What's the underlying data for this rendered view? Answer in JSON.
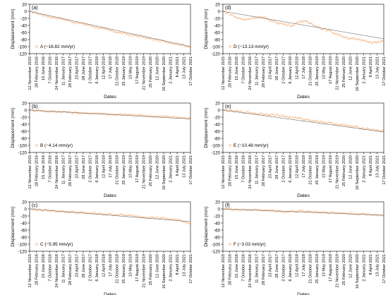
{
  "chart_data": [
    {
      "type": "scatter",
      "panel_label": "(a)",
      "legend": "A (−16.82 mm/yr)",
      "xlabel": "Dates",
      "ylabel": "Displacement (mm)",
      "ylim": [
        -120,
        20
      ],
      "yticks": [
        20,
        0,
        -20,
        -40,
        -60,
        -80,
        -100,
        -120
      ],
      "xticks": [
        "12 November 2015",
        "28 February 2016",
        "15 June 2016",
        "7 October 2016",
        "24 November 2016",
        "11 January 2017",
        "28 February 2017",
        "23 April 2017",
        "28 June 2017",
        "2 October 2017",
        "6 January 2018",
        "12 April 2018",
        "17 July 2018",
        "21 October 2018",
        "25 January 2019",
        "13 May 2019",
        "17 August 2019",
        "21 November 2019",
        "25 February 2020",
        "12 June 2020",
        "16 September 2020",
        "2 January 2021",
        "8 April 2021",
        "13 July 2021",
        "17 October 2021"
      ],
      "trend": {
        "rate_mm_per_yr": -16.82,
        "start": 0,
        "end": -100
      },
      "series": [
        {
          "name": "A",
          "x_range": [
            "12 November 2015",
            "17 October 2021"
          ],
          "y": [
            0,
            -5,
            -11,
            -16,
            -19,
            -23,
            -29,
            -34,
            -37,
            -42,
            -47,
            -52,
            -57,
            -61,
            -65,
            -69,
            -72,
            -77,
            -81,
            -84,
            -88,
            -92,
            -96,
            -101
          ]
        }
      ],
      "color": "#f4a261"
    },
    {
      "type": "scatter",
      "panel_label": "(b)",
      "legend": "B (−4.14 mm/yr)",
      "xlabel": "Dates",
      "ylabel": "Displacement (mm)",
      "ylim": [
        -120,
        20
      ],
      "yticks": [
        20,
        0,
        -20,
        -40,
        -60,
        -80,
        -100,
        -120
      ],
      "xticks": [
        "12 November 2015",
        "28 February 2016",
        "15 June 2016",
        "7 October 2016",
        "24 November 2016",
        "11 January 2017",
        "28 February 2017",
        "23 April 2017",
        "28 June 2017",
        "2 October 2017",
        "6 January 2018",
        "12 April 2018",
        "17 July 2018",
        "21 October 2018",
        "25 January 2019",
        "13 May 2019",
        "17 August 2019",
        "21 November 2019",
        "25 February 2020",
        "12 June 2020",
        "16 September 2020",
        "2 January 2021",
        "8 April 2021",
        "13 July 2021",
        "17 October 2021"
      ],
      "trend": {
        "rate_mm_per_yr": -4.14,
        "start": 0,
        "end": -25
      },
      "series": [
        {
          "name": "B",
          "x_range": [
            "12 November 2015",
            "17 October 2021"
          ],
          "y": [
            0,
            -1,
            -3,
            -5,
            -4,
            -5,
            -7,
            -8,
            -10,
            -9,
            -9,
            -11,
            -12,
            -13,
            -13,
            -14,
            -15,
            -16,
            -18,
            -18,
            -19,
            -21,
            -22,
            -24
          ]
        }
      ],
      "color": "#f4a261"
    },
    {
      "type": "scatter",
      "panel_label": "(c)",
      "legend": "C (−5.95 mm/yr)",
      "xlabel": "Dates",
      "ylabel": "Displacement (mm)",
      "ylim": [
        -120,
        20
      ],
      "yticks": [
        20,
        0,
        -20,
        -40,
        -60,
        -80,
        -100,
        -120
      ],
      "xticks": [
        "12 November 2015",
        "28 February 2016",
        "15 June 2016",
        "7 October 2016",
        "24 November 2016",
        "11 January 2017",
        "28 February 2017",
        "23 April 2017",
        "28 June 2017",
        "2 October 2017",
        "6 January 2018",
        "12 April 2018",
        "17 July 2018",
        "21 October 2018",
        "25 January 2019",
        "13 May 2019",
        "17 August 2019",
        "21 November 2019",
        "25 February 2020",
        "12 June 2020",
        "16 September 2020",
        "2 January 2021",
        "8 April 2021",
        "13 July 2021",
        "17 October 2021"
      ],
      "trend": {
        "rate_mm_per_yr": -5.95,
        "start": 0,
        "end": -36
      },
      "series": [
        {
          "name": "C",
          "x_range": [
            "12 November 2015",
            "17 October 2021"
          ],
          "y": [
            0,
            -2,
            -4,
            -5,
            -6,
            -8,
            -9,
            -10,
            -11,
            -13,
            -14,
            -15,
            -16,
            -17,
            -19,
            -20,
            -22,
            -24,
            -25,
            -27,
            -29,
            -31,
            -35,
            -42
          ]
        }
      ],
      "color": "#f4a261"
    },
    {
      "type": "scatter",
      "panel_label": "(d)",
      "legend": "D (−13.13 mm/yr)",
      "xlabel": "Dates",
      "ylabel": "Displacement (mm)",
      "ylim": [
        -120,
        20
      ],
      "yticks": [
        20,
        0,
        -20,
        -40,
        -60,
        -80,
        -100,
        -120
      ],
      "xticks": [
        "12 November 2015",
        "28 February 2016",
        "15 June 2016",
        "7 October 2016",
        "24 November 2016",
        "11 January 2017",
        "28 February 2017",
        "23 April 2017",
        "28 June 2017",
        "2 October 2017",
        "6 January 2018",
        "12 April 2018",
        "17 July 2018",
        "21 October 2018",
        "25 January 2019",
        "13 May 2019",
        "17 August 2019",
        "21 November 2019",
        "25 February 2020",
        "12 June 2020",
        "16 September 2020",
        "2 January 2021",
        "8 April 2021",
        "13 July 2021",
        "17 October 2021"
      ],
      "trend": {
        "rate_mm_per_yr": -13.13,
        "start": 0,
        "end": -78
      },
      "series": [
        {
          "name": "D",
          "x_range": [
            "12 November 2015",
            "17 October 2021"
          ],
          "y": [
            0,
            -8,
            -18,
            -24,
            -20,
            -16,
            -19,
            -27,
            -33,
            -38,
            -40,
            -28,
            -30,
            -38,
            -48,
            -54,
            -62,
            -70,
            -76,
            -80,
            -82,
            -86,
            -89,
            -84
          ]
        }
      ],
      "color": "#f4a261"
    },
    {
      "type": "scatter",
      "panel_label": "(e)",
      "legend": "E (−10.48 mm/yr)",
      "xlabel": "Dates",
      "ylabel": "Displacement (mm)",
      "ylim": [
        -120,
        20
      ],
      "yticks": [
        20,
        0,
        -20,
        -40,
        -60,
        -80,
        -100,
        -120
      ],
      "xticks": [
        "12 November 2015",
        "28 February 2016",
        "15 June 2016",
        "7 October 2016",
        "24 November 2016",
        "11 January 2017",
        "28 February 2017",
        "23 April 2017",
        "28 June 2017",
        "2 October 2017",
        "6 January 2018",
        "12 April 2018",
        "17 July 2018",
        "21 October 2018",
        "25 January 2019",
        "13 May 2019",
        "17 August 2019",
        "21 November 2019",
        "25 February 2020",
        "12 June 2020",
        "16 September 2020",
        "2 January 2021",
        "8 April 2021",
        "13 July 2021",
        "17 October 2021"
      ],
      "trend": {
        "rate_mm_per_yr": -10.48,
        "start": 0,
        "end": -62
      },
      "series": [
        {
          "name": "E",
          "x_range": [
            "12 November 2015",
            "17 October 2021"
          ],
          "y": [
            0,
            -2,
            -4,
            -6,
            -8,
            -10,
            -11,
            -13,
            -15,
            -18,
            -21,
            -24,
            -27,
            -30,
            -33,
            -36,
            -39,
            -42,
            -45,
            -48,
            -51,
            -54,
            -57,
            -60
          ]
        }
      ],
      "color": "#f4a261"
    },
    {
      "type": "scatter",
      "panel_label": "(f)",
      "legend": "F (−3.03 mm/yr)",
      "xlabel": "Dates",
      "ylabel": "Displacement (mm)",
      "ylim": [
        -120,
        20
      ],
      "yticks": [
        20,
        0,
        -20,
        -40,
        -60,
        -80,
        -100,
        -120
      ],
      "xticks": [
        "12 November 2015",
        "28 February 2016",
        "15 June 2016",
        "7 October 2016",
        "24 November 2016",
        "11 January 2017",
        "28 February 2017",
        "23 April 2017",
        "28 June 2017",
        "2 October 2017",
        "6 January 2018",
        "12 April 2018",
        "17 July 2018",
        "21 October 2018",
        "25 January 2019",
        "13 May 2019",
        "17 August 2019",
        "21 November 2019",
        "25 February 2020",
        "12 June 2020",
        "16 September 2020",
        "2 January 2021",
        "8 April 2021",
        "13 July 2021",
        "17 October 2021"
      ],
      "trend": {
        "rate_mm_per_yr": -3.03,
        "start": 0,
        "end": -18
      },
      "series": [
        {
          "name": "F",
          "x_range": [
            "12 November 2015",
            "17 October 2021"
          ],
          "y": [
            0,
            -1,
            -2,
            -3,
            -2,
            -3,
            -4,
            -5,
            -6,
            -9,
            -7,
            -6,
            -7,
            -8,
            -9,
            -10,
            -11,
            -12,
            -13,
            -14,
            -15,
            -16,
            -17,
            -18
          ]
        }
      ],
      "color": "#f4a261"
    }
  ]
}
